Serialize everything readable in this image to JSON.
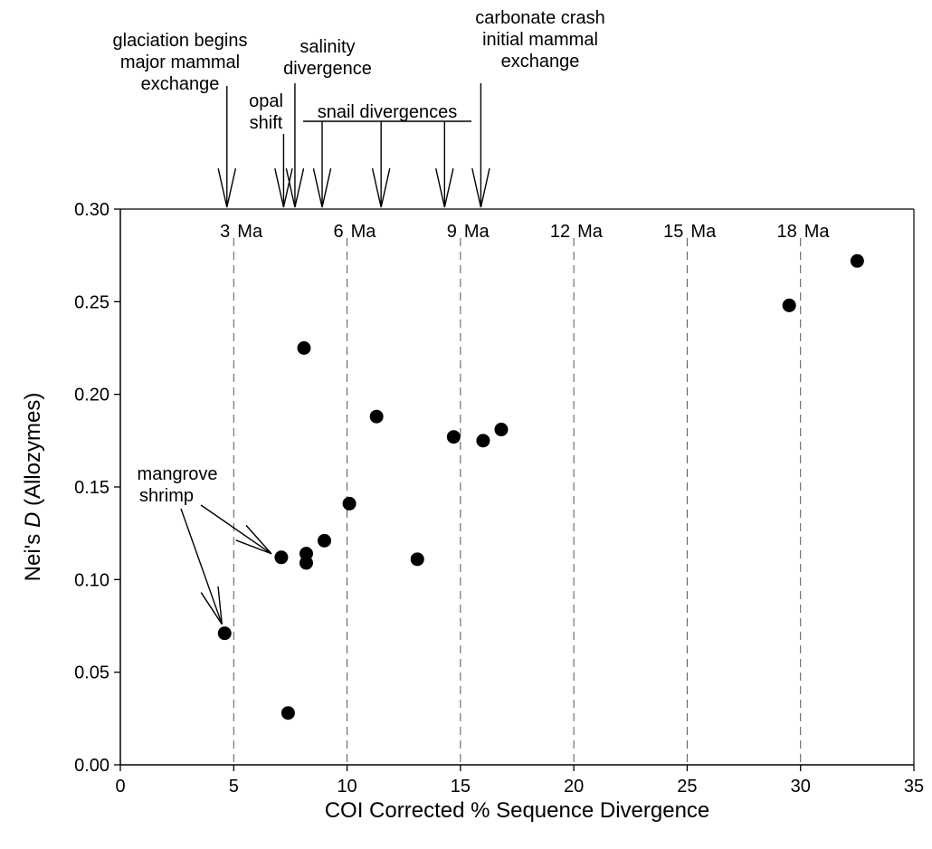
{
  "chart_data": {
    "type": "scatter",
    "xlabel": "COI Corrected % Sequence Divergence",
    "ylabel": {
      "prefix": "Nei's ",
      "italic": "D",
      "suffix": " (Allozymes)"
    },
    "xlim": [
      0,
      35
    ],
    "ylim": [
      0,
      0.3
    ],
    "x_ticks": [
      0,
      5,
      10,
      15,
      20,
      25,
      30,
      35
    ],
    "x_tick_labels": [
      "0",
      "5",
      "10",
      "15",
      "20",
      "25",
      "30",
      "35"
    ],
    "y_ticks": [
      0,
      0.05,
      0.1,
      0.15,
      0.2,
      0.25,
      0.3
    ],
    "y_tick_labels": [
      "0.00",
      "0.05",
      "0.10",
      "0.15",
      "0.20",
      "0.25",
      "0.30"
    ],
    "grid": false,
    "reference_lines": [
      {
        "x": 5,
        "number": "3",
        "unit": "Ma"
      },
      {
        "x": 10,
        "number": "6",
        "unit": "Ma"
      },
      {
        "x": 15,
        "number": "9",
        "unit": "Ma"
      },
      {
        "x": 20,
        "number": "12",
        "unit": "Ma"
      },
      {
        "x": 25,
        "number": "15",
        "unit": "Ma"
      },
      {
        "x": 30,
        "number": "18",
        "unit": "Ma"
      }
    ],
    "points": [
      {
        "x": 4.6,
        "y": 0.071
      },
      {
        "x": 7.1,
        "y": 0.112
      },
      {
        "x": 7.4,
        "y": 0.028
      },
      {
        "x": 8.1,
        "y": 0.225
      },
      {
        "x": 8.2,
        "y": 0.109
      },
      {
        "x": 8.2,
        "y": 0.114
      },
      {
        "x": 9.0,
        "y": 0.121
      },
      {
        "x": 10.1,
        "y": 0.141
      },
      {
        "x": 11.3,
        "y": 0.188
      },
      {
        "x": 13.1,
        "y": 0.111
      },
      {
        "x": 14.7,
        "y": 0.177
      },
      {
        "x": 16.0,
        "y": 0.175
      },
      {
        "x": 16.8,
        "y": 0.181
      },
      {
        "x": 29.5,
        "y": 0.248
      },
      {
        "x": 32.5,
        "y": 0.272
      }
    ],
    "event_annotations": [
      {
        "lines": [
          "glaciation begins",
          "major mammal",
          "exchange"
        ],
        "arrows_x": [
          4.7
        ]
      },
      {
        "lines": [
          "opal",
          "shift"
        ],
        "arrows_x": [
          7.2
        ]
      },
      {
        "lines": [
          "salinity",
          "divergence"
        ],
        "arrows_x": [
          7.7
        ]
      },
      {
        "lines": [
          "snail divergences"
        ],
        "underlined": true,
        "arrows_x": [
          8.9,
          11.5,
          14.3
        ]
      },
      {
        "lines": [
          "carbonate crash",
          "initial mammal",
          "exchange"
        ],
        "arrows_x": [
          15.9
        ]
      }
    ],
    "point_annotations": [
      {
        "lines": [
          "mangrove",
          "shrimp"
        ],
        "targets": [
          {
            "x": 4.6,
            "y": 0.071
          },
          {
            "x": 7.1,
            "y": 0.112
          }
        ]
      }
    ]
  }
}
